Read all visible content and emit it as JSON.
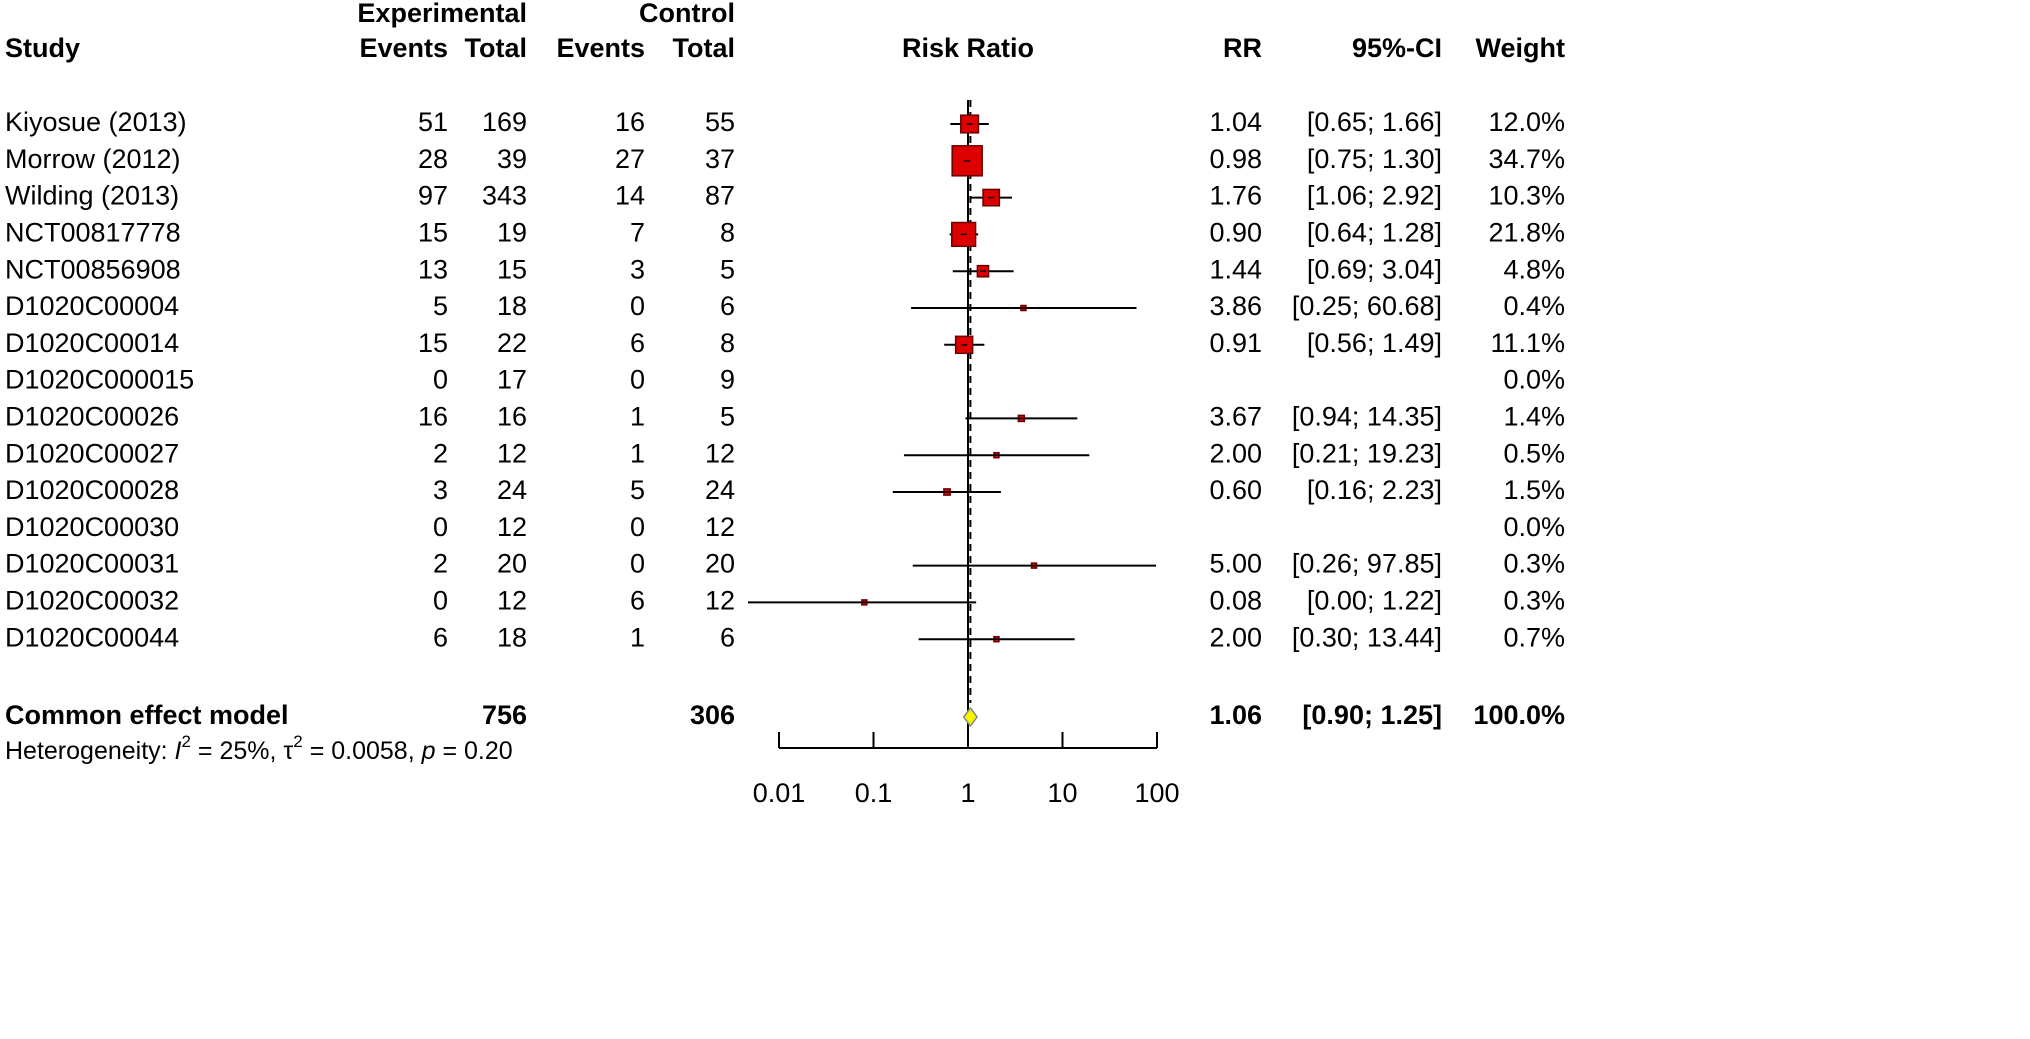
{
  "chart_data": {
    "type": "forest",
    "header_groups": [
      "Experimental",
      "Control"
    ],
    "headers": [
      "Study",
      "Events",
      "Total",
      "Events",
      "Total",
      "Risk Ratio",
      "RR",
      "95%-CI",
      "Weight"
    ],
    "studies": [
      {
        "name": "Kiyosue (2013)",
        "exp_events": 51,
        "exp_total": 169,
        "ctrl_events": 16,
        "ctrl_total": 55,
        "rr": 1.04,
        "rr_label": "1.04",
        "ci_lower": 0.65,
        "ci_upper": 1.66,
        "ci_label": "[0.65; 1.66]",
        "weight": 12.0,
        "weight_label": "12.0%"
      },
      {
        "name": "Morrow (2012)",
        "exp_events": 28,
        "exp_total": 39,
        "ctrl_events": 27,
        "ctrl_total": 37,
        "rr": 0.98,
        "rr_label": "0.98",
        "ci_lower": 0.75,
        "ci_upper": 1.3,
        "ci_label": "[0.75; 1.30]",
        "weight": 34.7,
        "weight_label": "34.7%"
      },
      {
        "name": "Wilding (2013)",
        "exp_events": 97,
        "exp_total": 343,
        "ctrl_events": 14,
        "ctrl_total": 87,
        "rr": 1.76,
        "rr_label": "1.76",
        "ci_lower": 1.06,
        "ci_upper": 2.92,
        "ci_label": "[1.06; 2.92]",
        "weight": 10.3,
        "weight_label": "10.3%"
      },
      {
        "name": "NCT00817778",
        "exp_events": 15,
        "exp_total": 19,
        "ctrl_events": 7,
        "ctrl_total": 8,
        "rr": 0.9,
        "rr_label": "0.90",
        "ci_lower": 0.64,
        "ci_upper": 1.28,
        "ci_label": "[0.64; 1.28]",
        "weight": 21.8,
        "weight_label": "21.8%"
      },
      {
        "name": "NCT00856908",
        "exp_events": 13,
        "exp_total": 15,
        "ctrl_events": 3,
        "ctrl_total": 5,
        "rr": 1.44,
        "rr_label": "1.44",
        "ci_lower": 0.69,
        "ci_upper": 3.04,
        "ci_label": "[0.69; 3.04]",
        "weight": 4.8,
        "weight_label": "4.8%"
      },
      {
        "name": "D1020C00004",
        "exp_events": 5,
        "exp_total": 18,
        "ctrl_events": 0,
        "ctrl_total": 6,
        "rr": 3.86,
        "rr_label": "3.86",
        "ci_lower": 0.25,
        "ci_upper": 60.68,
        "ci_label": "[0.25; 60.68]",
        "weight": 0.4,
        "weight_label": "0.4%"
      },
      {
        "name": "D1020C00014",
        "exp_events": 15,
        "exp_total": 22,
        "ctrl_events": 6,
        "ctrl_total": 8,
        "rr": 0.91,
        "rr_label": "0.91",
        "ci_lower": 0.56,
        "ci_upper": 1.49,
        "ci_label": "[0.56; 1.49]",
        "weight": 11.1,
        "weight_label": "11.1%"
      },
      {
        "name": "D1020C000015",
        "exp_events": 0,
        "exp_total": 17,
        "ctrl_events": 0,
        "ctrl_total": 9,
        "rr": null,
        "rr_label": null,
        "ci_lower": null,
        "ci_upper": null,
        "ci_label": null,
        "weight": 0.0,
        "weight_label": "0.0%"
      },
      {
        "name": "D1020C00026",
        "exp_events": 16,
        "exp_total": 16,
        "ctrl_events": 1,
        "ctrl_total": 5,
        "rr": 3.67,
        "rr_label": "3.67",
        "ci_lower": 0.94,
        "ci_upper": 14.35,
        "ci_label": "[0.94; 14.35]",
        "weight": 1.4,
        "weight_label": "1.4%"
      },
      {
        "name": "D1020C00027",
        "exp_events": 2,
        "exp_total": 12,
        "ctrl_events": 1,
        "ctrl_total": 12,
        "rr": 2.0,
        "rr_label": "2.00",
        "ci_lower": 0.21,
        "ci_upper": 19.23,
        "ci_label": "[0.21; 19.23]",
        "weight": 0.5,
        "weight_label": "0.5%"
      },
      {
        "name": "D1020C00028",
        "exp_events": 3,
        "exp_total": 24,
        "ctrl_events": 5,
        "ctrl_total": 24,
        "rr": 0.6,
        "rr_label": "0.60",
        "ci_lower": 0.16,
        "ci_upper": 2.23,
        "ci_label": "[0.16; 2.23]",
        "weight": 1.5,
        "weight_label": "1.5%"
      },
      {
        "name": "D1020C00030",
        "exp_events": 0,
        "exp_total": 12,
        "ctrl_events": 0,
        "ctrl_total": 12,
        "rr": null,
        "rr_label": null,
        "ci_lower": null,
        "ci_upper": null,
        "ci_label": null,
        "weight": 0.0,
        "weight_label": "0.0%"
      },
      {
        "name": "D1020C00031",
        "exp_events": 2,
        "exp_total": 20,
        "ctrl_events": 0,
        "ctrl_total": 20,
        "rr": 5.0,
        "rr_label": "5.00",
        "ci_lower": 0.26,
        "ci_upper": 97.85,
        "ci_label": "[0.26; 97.85]",
        "weight": 0.3,
        "weight_label": "0.3%"
      },
      {
        "name": "D1020C00032",
        "exp_events": 0,
        "exp_total": 12,
        "ctrl_events": 6,
        "ctrl_total": 12,
        "rr": 0.08,
        "rr_label": "0.08",
        "ci_lower": 0.0,
        "ci_upper": 1.22,
        "ci_label": "[0.00; 1.22]",
        "weight": 0.3,
        "weight_label": "0.3%"
      },
      {
        "name": "D1020C00044",
        "exp_events": 6,
        "exp_total": 18,
        "ctrl_events": 1,
        "ctrl_total": 6,
        "rr": 2.0,
        "rr_label": "2.00",
        "ci_lower": 0.3,
        "ci_upper": 13.44,
        "ci_label": "[0.30; 13.44]",
        "weight": 0.7,
        "weight_label": "0.7%"
      }
    ],
    "summary": {
      "name": "Common effect model",
      "exp_total": 756,
      "ctrl_total": 306,
      "rr": 1.06,
      "rr_label": "1.06",
      "ci_lower": 0.9,
      "ci_upper": 1.25,
      "ci_label": "[0.90; 1.25]",
      "weight_label": "100.0%"
    },
    "heterogeneity": [
      "Heterogeneity: ",
      "I",
      "2",
      " = 25%, ",
      "τ",
      "2",
      " = 0.0058, ",
      "p",
      " = 0.20"
    ],
    "reference_line": 1,
    "log_x": true,
    "xlim": [
      0.01,
      100
    ],
    "xticks": [
      0.01,
      0.1,
      1,
      10,
      100
    ],
    "square_color": "#dd0000",
    "square_border": "#6a0000",
    "diamond_color": "#f5f500"
  }
}
